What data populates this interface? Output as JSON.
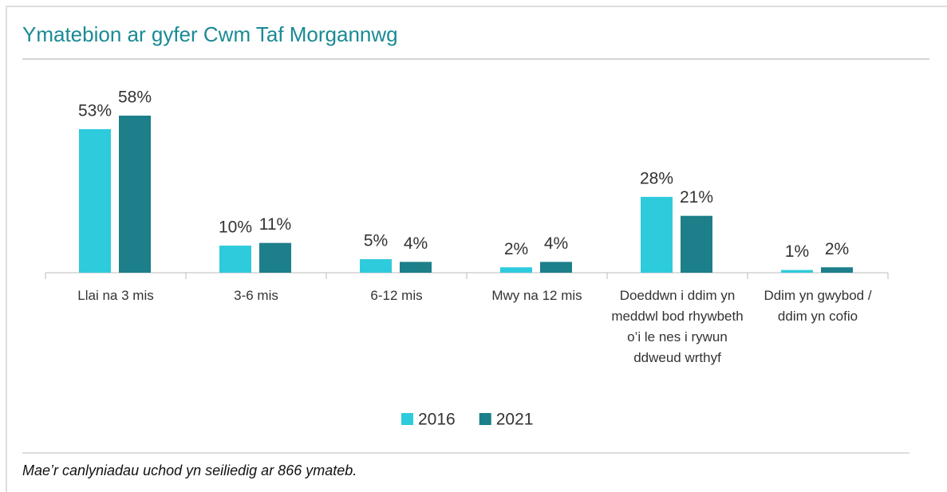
{
  "chart_data": {
    "type": "bar",
    "title": "Ymatebion ar gyfer Cwm Taf Morgannwg",
    "categories": [
      "Llai na 3 mis",
      "3-6 mis",
      "6-12 mis",
      "Mwy na 12 mis",
      "Doeddwn i ddim yn meddwl bod rhywbeth o’i le nes i rywun ddweud wrthyf",
      "Ddim yn gwybod / ddim yn cofio"
    ],
    "series": [
      {
        "name": "2016",
        "color": "#2ecbdc",
        "values": [
          53,
          10,
          5,
          2,
          28,
          1
        ],
        "value_labels": [
          "53%",
          "10%",
          "5%",
          "2%",
          "28%",
          "1%"
        ]
      },
      {
        "name": "2021",
        "color": "#1c7f8a",
        "values": [
          58,
          11,
          4,
          4,
          21,
          2
        ],
        "value_labels": [
          "58%",
          "11%",
          "4%",
          "4%",
          "21%",
          "2%"
        ]
      }
    ],
    "legend": "bottom",
    "footnote": "Mae’r canlyniadau uchod yn seiliedig ar 866 ymateb."
  }
}
